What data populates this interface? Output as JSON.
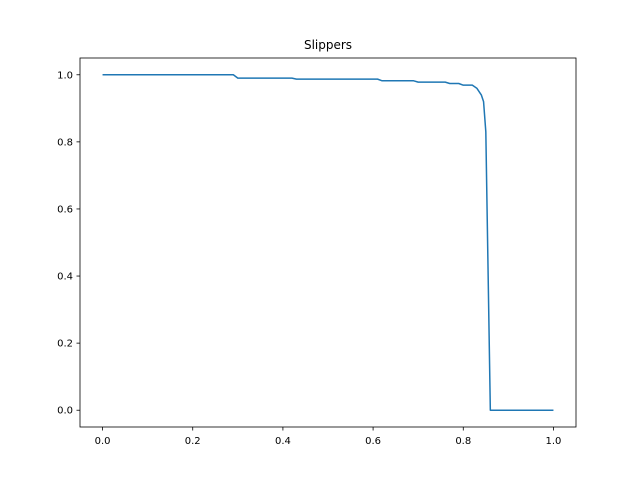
{
  "chart_data": {
    "type": "line",
    "title": "Slippers",
    "xlabel": "",
    "ylabel": "",
    "xlim": [
      -0.05,
      1.05
    ],
    "ylim": [
      -0.05,
      1.05
    ],
    "grid": false,
    "x_ticks": [
      "0.0",
      "0.2",
      "0.4",
      "0.6",
      "0.8",
      "1.0"
    ],
    "y_ticks": [
      "0.0",
      "0.2",
      "0.4",
      "0.6",
      "0.8",
      "1.0"
    ],
    "series": [
      {
        "color": "#1f77b4",
        "x": [
          0.0,
          0.29,
          0.3,
          0.42,
          0.43,
          0.61,
          0.62,
          0.69,
          0.7,
          0.76,
          0.77,
          0.79,
          0.8,
          0.82,
          0.83,
          0.84,
          0.845,
          0.85,
          0.86,
          0.87,
          1.0
        ],
        "y": [
          1.0,
          1.0,
          0.99,
          0.99,
          0.987,
          0.987,
          0.982,
          0.982,
          0.978,
          0.978,
          0.974,
          0.974,
          0.969,
          0.969,
          0.96,
          0.94,
          0.92,
          0.83,
          0.0,
          0.0,
          0.0
        ]
      }
    ]
  }
}
